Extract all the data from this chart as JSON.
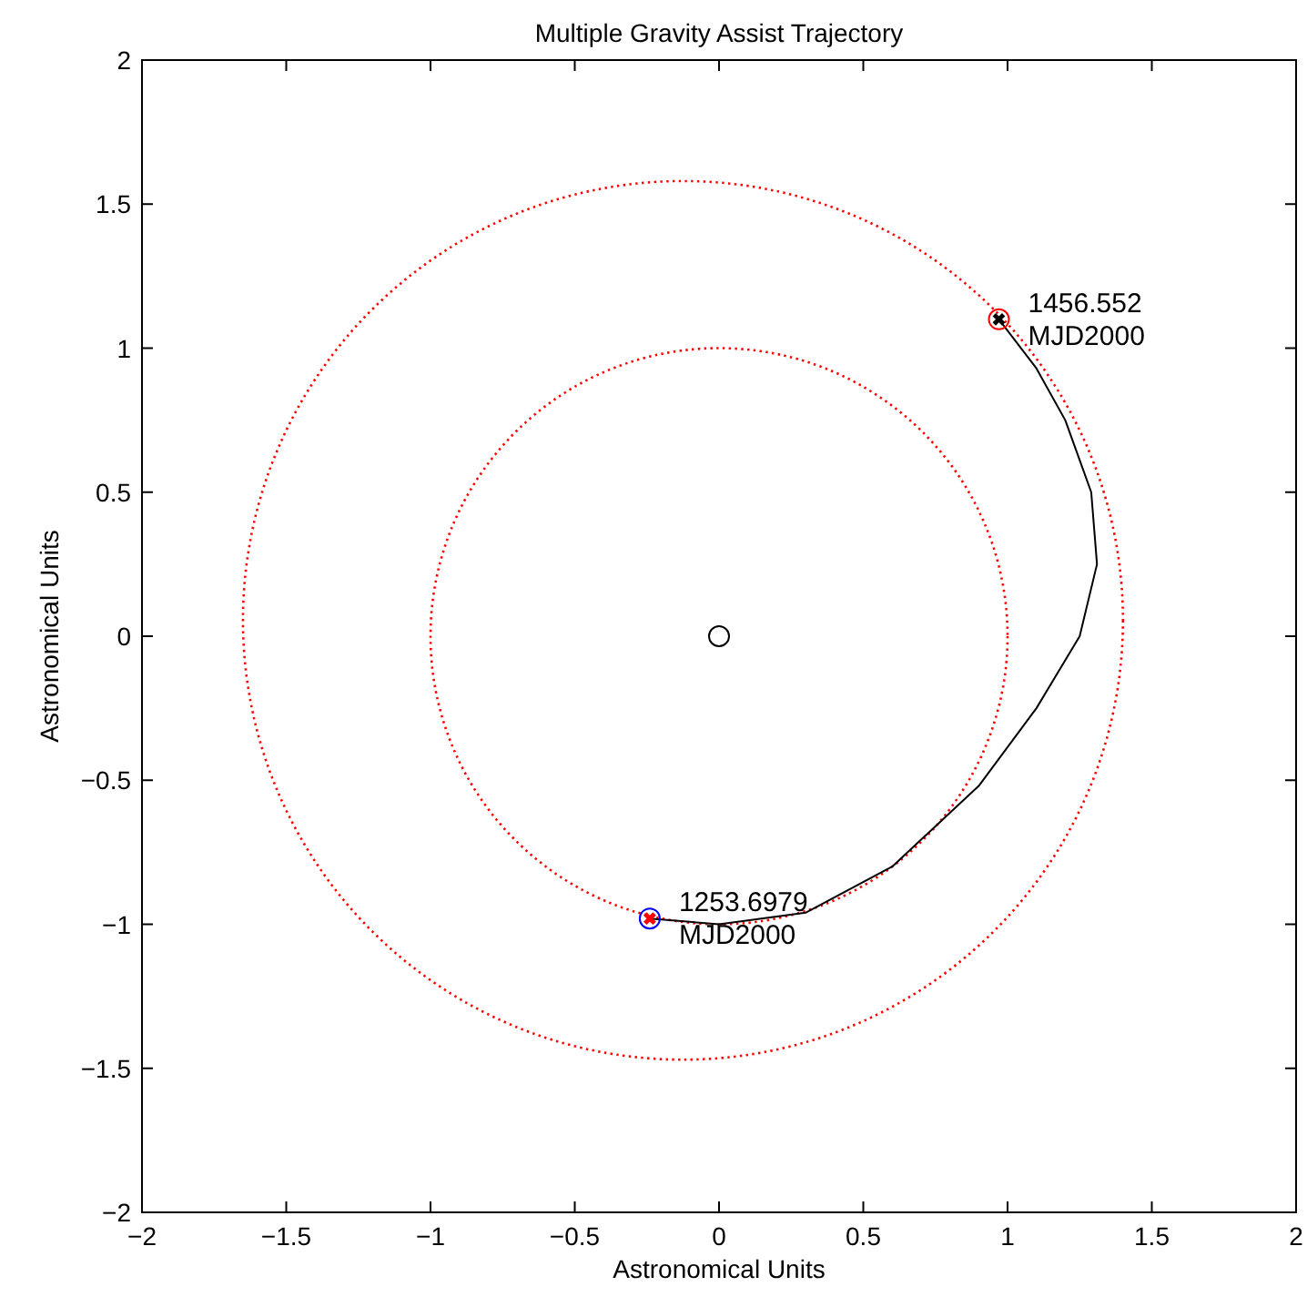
{
  "chart_data": {
    "type": "line",
    "title": "Multiple Gravity Assist Trajectory",
    "xlabel": "Astronomical Units",
    "ylabel": "Astronomical Units",
    "xlim": [
      -2,
      2
    ],
    "ylim": [
      -2,
      2
    ],
    "xticks": [
      -2,
      -1.5,
      -1,
      -0.5,
      0,
      0.5,
      1,
      1.5,
      2
    ],
    "yticks": [
      -2,
      -1.5,
      -1,
      -0.5,
      0,
      0.5,
      1,
      1.5,
      2
    ],
    "series": [
      {
        "color": "#000000",
        "line_style": "solid",
        "x": [
          -0.24,
          0,
          0.3,
          0.6,
          0.9,
          1.1,
          1.25,
          1.31,
          1.29,
          1.2,
          1.1,
          0.97
        ],
        "values": [
          -0.98,
          -1.0,
          -0.96,
          -0.8,
          -0.52,
          -0.25,
          0.0,
          0.25,
          0.5,
          0.75,
          0.93,
          1.1
        ]
      },
      {
        "type": "scatter",
        "color": "#000000",
        "marker": "circle",
        "x": [
          0
        ],
        "values": [
          0
        ]
      },
      {
        "type": "scatter",
        "color": "#0000ff",
        "marker": "circle",
        "x": [
          -0.24
        ],
        "values": [
          -0.98
        ]
      },
      {
        "type": "scatter",
        "color": "#ff0000",
        "marker": "cross",
        "x": [
          -0.24
        ],
        "values": [
          -0.98
        ]
      },
      {
        "type": "scatter",
        "color": "#ff0000",
        "marker": "circle",
        "x": [
          0.97
        ],
        "values": [
          1.1
        ]
      },
      {
        "type": "scatter",
        "color": "#000000",
        "marker": "cross",
        "x": [
          0.97
        ],
        "values": [
          1.1
        ]
      }
    ],
    "annotations": [
      {
        "text": "1456.552\nMJD2000",
        "x": 0.97,
        "y": 1.1
      },
      {
        "text": "1253.6979\nMJD2000",
        "x": -0.24,
        "y": -0.98
      }
    ]
  }
}
